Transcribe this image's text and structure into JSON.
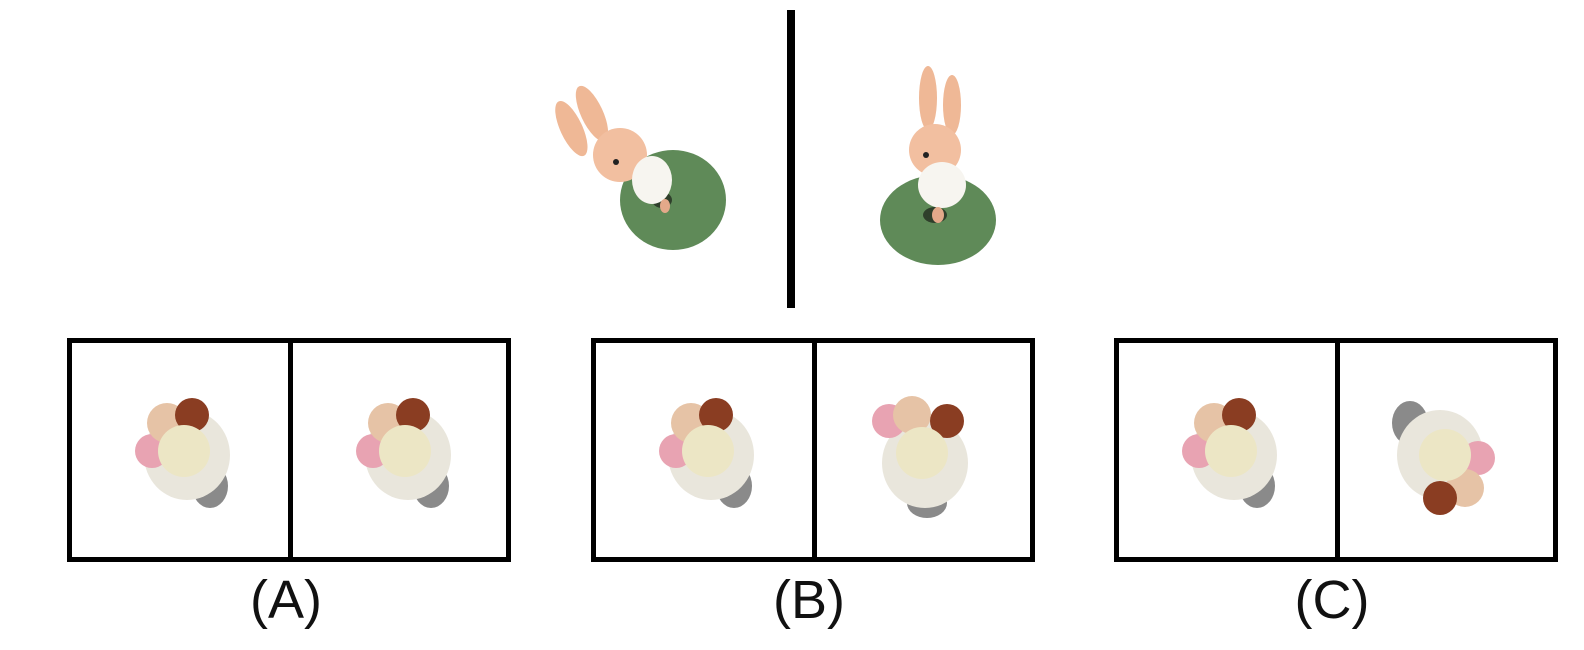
{
  "reference": {
    "left_view": "rabbit-figure-rotated",
    "right_view": "rabbit-figure-upright"
  },
  "options": [
    {
      "label": "(A)",
      "left_view": "ice-cream-cup",
      "right_view": "ice-cream-cup"
    },
    {
      "label": "(B)",
      "left_view": "ice-cream-cup",
      "right_view": "ice-cream-cup-rotated"
    },
    {
      "label": "(C)",
      "left_view": "ice-cream-cup",
      "right_view": "ice-cream-cup-flipped"
    }
  ],
  "colors": {
    "frame": "#000000",
    "rabbit_skin": "#f2bfa0",
    "rabbit_base": "#5f8a58",
    "cup": "#e9e6dc",
    "cup_stem": "#8a8a8a"
  }
}
